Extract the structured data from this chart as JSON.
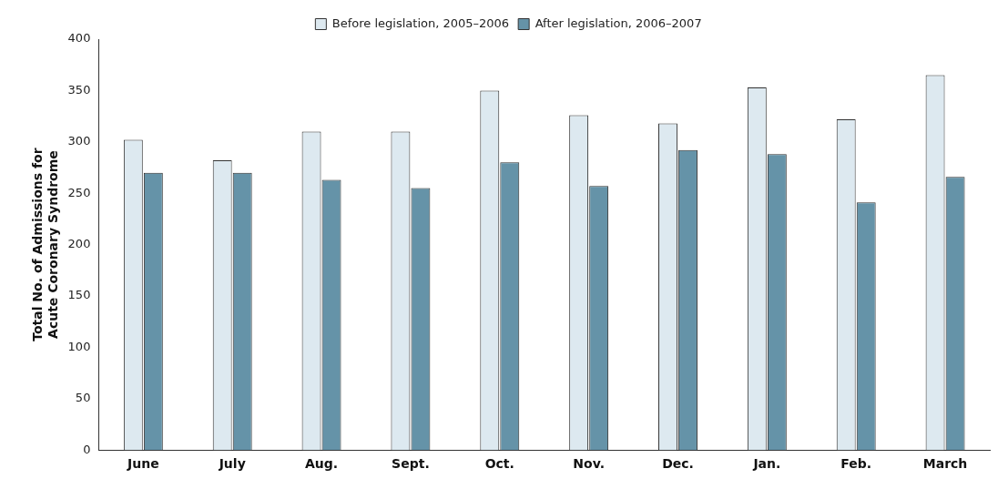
{
  "chart_data": {
    "type": "bar",
    "ylabel": "Total No. of Admissions for Acute Coronary Syndrome",
    "categories": [
      "June",
      "July",
      "Aug.",
      "Sept.",
      "Oct.",
      "Nov.",
      "Dec.",
      "Jan.",
      "Feb.",
      "March"
    ],
    "series": [
      {
        "name": "Before legislation, 2005–2006",
        "color": "#dde9f0",
        "values": [
          302,
          282,
          310,
          310,
          350,
          326,
          318,
          353,
          322,
          365
        ]
      },
      {
        "name": "After legislation, 2006–2007",
        "color": "#6593a8",
        "values": [
          270,
          270,
          263,
          255,
          280,
          257,
          292,
          288,
          241,
          266
        ]
      }
    ],
    "ylim": [
      0,
      400
    ],
    "yticks": [
      0,
      50,
      100,
      150,
      200,
      250,
      300,
      350,
      400
    ],
    "grid": false,
    "legend": "top"
  }
}
